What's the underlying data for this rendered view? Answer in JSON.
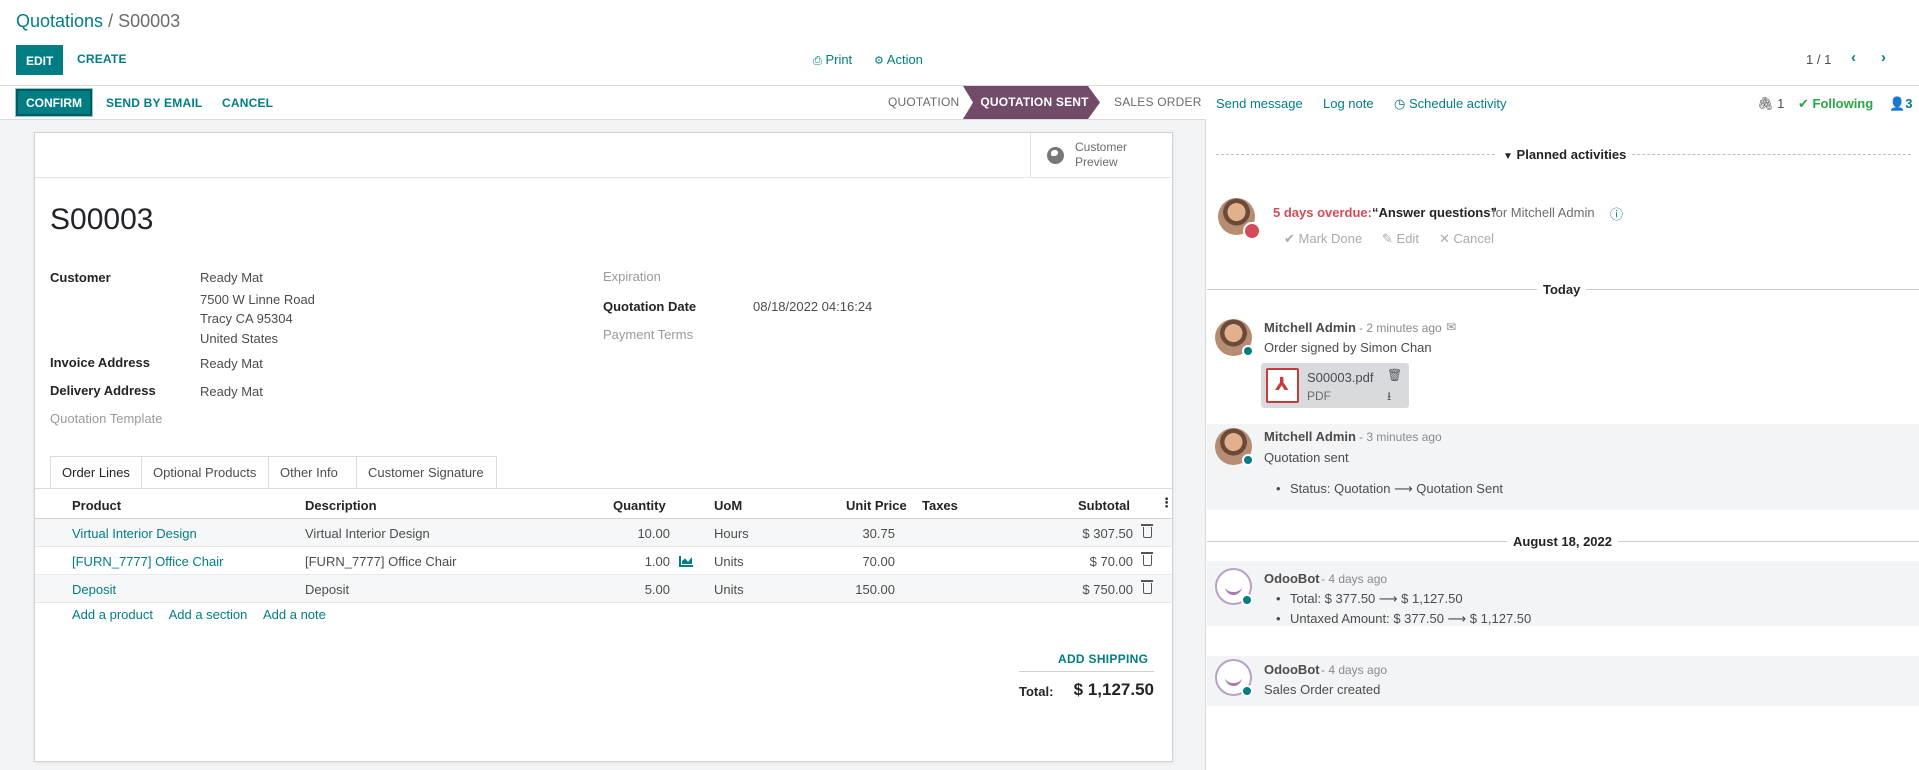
{
  "breadcrumb": {
    "root": "Quotations",
    "separator": " / ",
    "current": "S00003"
  },
  "toolbar": {
    "edit": "EDIT",
    "create": "CREATE",
    "print": "Print",
    "action": "Action"
  },
  "pager": {
    "value": "1 / 1"
  },
  "statusbar": {
    "confirm": "CONFIRM",
    "send_email": "SEND BY EMAIL",
    "cancel": "CANCEL",
    "stages": [
      "QUOTATION",
      "QUOTATION SENT",
      "SALES ORDER"
    ],
    "active_stage": "QUOTATION SENT"
  },
  "preview": {
    "label_line1": "Customer",
    "label_line2": "Preview"
  },
  "order": {
    "name": "S00003",
    "customer_label": "Customer",
    "customer_name": "Ready Mat",
    "address_line1": "7500 W Linne Road",
    "address_line2": "Tracy CA 95304",
    "address_line3": "United States",
    "invoice_label": "Invoice Address",
    "invoice_value": "Ready Mat",
    "delivery_label": "Delivery Address",
    "delivery_value": "Ready Mat",
    "template_label": "Quotation Template",
    "expiration_label": "Expiration",
    "qdate_label": "Quotation Date",
    "qdate_value": "08/18/2022 04:16:24",
    "terms_label": "Payment Terms"
  },
  "tabs": [
    "Order Lines",
    "Optional Products",
    "Other Info",
    "Customer Signature"
  ],
  "table": {
    "headers": {
      "product": "Product",
      "description": "Description",
      "quantity": "Quantity",
      "uom": "UoM",
      "unit_price": "Unit Price",
      "taxes": "Taxes",
      "subtotal": "Subtotal"
    },
    "rows": [
      {
        "product": "Virtual Interior Design",
        "description": "Virtual Interior Design",
        "quantity": "10.00",
        "uom": "Hours",
        "unit_price": "30.75",
        "subtotal": "$ 307.50"
      },
      {
        "product": "[FURN_7777] Office Chair",
        "description": "[FURN_7777] Office Chair",
        "quantity": "1.00",
        "uom": "Units",
        "unit_price": "70.00",
        "subtotal": "$ 70.00"
      },
      {
        "product": "Deposit",
        "description": "Deposit",
        "quantity": "5.00",
        "uom": "Units",
        "unit_price": "150.00",
        "subtotal": "$ 750.00"
      }
    ],
    "add_product": "Add a product",
    "add_section": "Add a section",
    "add_note": "Add a note"
  },
  "totals": {
    "add_shipping": "ADD SHIPPING",
    "total_label": "Total:",
    "total_value": "$ 1,127.50"
  },
  "chatter": {
    "send_message": "Send message",
    "log_note": "Log note",
    "schedule_activity": "Schedule activity",
    "attachments_count": "1",
    "following": "Following",
    "followers_count": "3",
    "planned_activities": "Planned activities",
    "activity": {
      "overdue": "5 days overdue:",
      "summary": "“Answer questions”",
      "for": "for Mitchell Admin",
      "mark_done": "Mark Done",
      "edit": "Edit",
      "cancel": "Cancel"
    },
    "today": "Today",
    "messages": [
      {
        "author": "Mitchell Admin",
        "time": "- 2 minutes ago",
        "body": "Order signed by Simon Chan",
        "attachment_name": "S00003.pdf",
        "attachment_type": "PDF"
      },
      {
        "author": "Mitchell Admin",
        "time": "- 3 minutes ago",
        "body": "Quotation sent",
        "tracking": "Status: Quotation ⟶ Quotation Sent"
      }
    ],
    "date_sep": "August 18, 2022",
    "bot_messages": [
      {
        "author": "OdooBot",
        "time": "- 4 days ago",
        "tracking1": "Total: $ 377.50 ⟶ $ 1,127.50",
        "tracking2": "Untaxed Amount: $ 377.50 ⟶ $ 1,127.50"
      },
      {
        "author": "OdooBot",
        "time": "- 4 days ago",
        "body": "Sales Order created"
      }
    ]
  },
  "colors": {
    "brand": "#017e84",
    "stage_active": "#714b67",
    "overdue": "#d44c59"
  }
}
